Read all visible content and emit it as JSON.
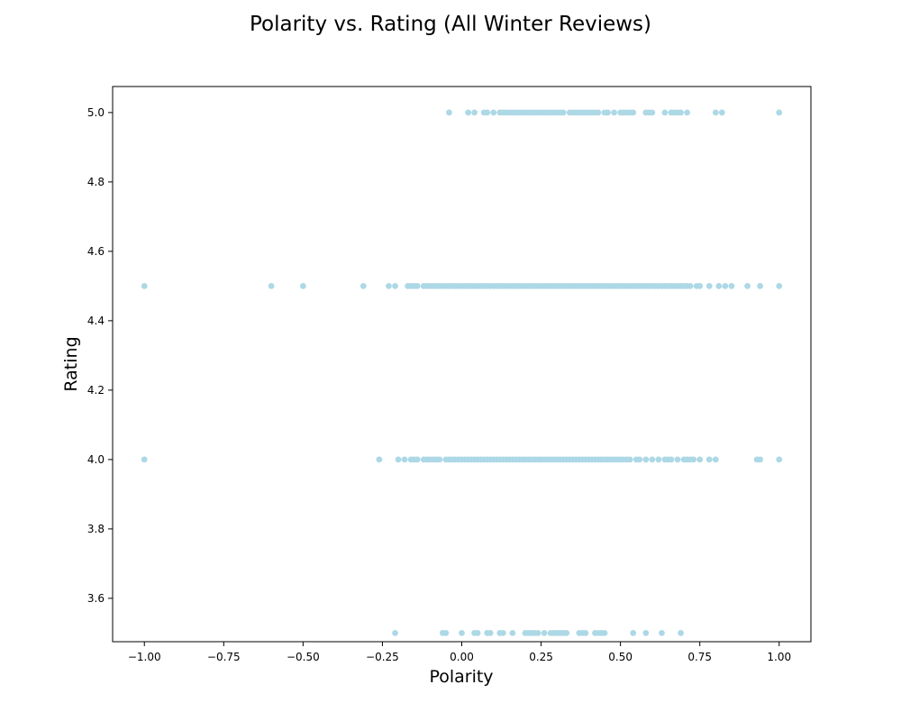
{
  "chart_data": {
    "type": "scatter",
    "title": "Polarity vs. Rating (All Winter Reviews)",
    "xlabel": "Polarity",
    "ylabel": "Rating",
    "xlim": [
      -1.1,
      1.1
    ],
    "ylim": [
      3.475,
      5.075
    ],
    "xticks": [
      -1.0,
      -0.75,
      -0.5,
      -0.25,
      0.0,
      0.25,
      0.5,
      0.75,
      1.0
    ],
    "xtick_labels": [
      "−1.00",
      "−0.75",
      "−0.50",
      "−0.25",
      "0.00",
      "0.25",
      "0.50",
      "0.75",
      "1.00"
    ],
    "yticks": [
      3.6,
      3.8,
      4.0,
      4.2,
      4.4,
      4.6,
      4.8,
      5.0
    ],
    "ytick_labels": [
      "3.6",
      "3.8",
      "4.0",
      "4.2",
      "4.4",
      "4.6",
      "4.8",
      "5.0"
    ],
    "grid": false,
    "marker_color": "#add8e6",
    "series": [
      {
        "y": 5.0,
        "x": [
          -0.04,
          0.02,
          0.04,
          0.07,
          0.08,
          0.1,
          0.12,
          0.13,
          0.14,
          0.15,
          0.16,
          0.17,
          0.18,
          0.19,
          0.2,
          0.21,
          0.22,
          0.23,
          0.24,
          0.25,
          0.26,
          0.27,
          0.28,
          0.29,
          0.3,
          0.31,
          0.32,
          0.34,
          0.35,
          0.36,
          0.37,
          0.38,
          0.39,
          0.4,
          0.41,
          0.42,
          0.43,
          0.45,
          0.46,
          0.48,
          0.5,
          0.51,
          0.52,
          0.53,
          0.54,
          0.58,
          0.59,
          0.6,
          0.64,
          0.66,
          0.67,
          0.68,
          0.69,
          0.71,
          0.8,
          0.82,
          1.0
        ]
      },
      {
        "y": 4.5,
        "x": [
          -1.0,
          -0.6,
          -0.5,
          -0.31,
          -0.23,
          -0.21,
          -0.17,
          -0.16,
          -0.15,
          -0.14,
          -0.12,
          -0.11,
          -0.1,
          -0.09,
          -0.08,
          -0.07,
          -0.06,
          -0.05,
          -0.04,
          -0.03,
          -0.02,
          -0.01,
          0.0,
          0.01,
          0.02,
          0.03,
          0.04,
          0.05,
          0.06,
          0.07,
          0.08,
          0.09,
          0.1,
          0.11,
          0.12,
          0.13,
          0.14,
          0.15,
          0.16,
          0.17,
          0.18,
          0.19,
          0.2,
          0.21,
          0.22,
          0.23,
          0.24,
          0.25,
          0.26,
          0.27,
          0.28,
          0.29,
          0.3,
          0.31,
          0.32,
          0.33,
          0.34,
          0.35,
          0.36,
          0.37,
          0.38,
          0.39,
          0.4,
          0.41,
          0.42,
          0.43,
          0.44,
          0.45,
          0.46,
          0.47,
          0.48,
          0.49,
          0.5,
          0.51,
          0.52,
          0.53,
          0.54,
          0.55,
          0.56,
          0.57,
          0.58,
          0.59,
          0.6,
          0.61,
          0.62,
          0.63,
          0.64,
          0.65,
          0.66,
          0.67,
          0.68,
          0.69,
          0.7,
          0.71,
          0.72,
          0.74,
          0.75,
          0.78,
          0.81,
          0.83,
          0.85,
          0.9,
          0.94,
          1.0
        ]
      },
      {
        "y": 4.0,
        "x": [
          -1.0,
          -0.26,
          -0.2,
          -0.18,
          -0.16,
          -0.15,
          -0.14,
          -0.12,
          -0.11,
          -0.1,
          -0.09,
          -0.08,
          -0.07,
          -0.05,
          -0.04,
          -0.03,
          -0.02,
          -0.01,
          0.0,
          0.01,
          0.02,
          0.03,
          0.04,
          0.05,
          0.06,
          0.07,
          0.08,
          0.09,
          0.1,
          0.11,
          0.12,
          0.13,
          0.14,
          0.15,
          0.16,
          0.17,
          0.18,
          0.19,
          0.2,
          0.21,
          0.22,
          0.23,
          0.24,
          0.25,
          0.26,
          0.27,
          0.28,
          0.29,
          0.3,
          0.31,
          0.32,
          0.33,
          0.34,
          0.35,
          0.36,
          0.37,
          0.38,
          0.39,
          0.4,
          0.41,
          0.42,
          0.43,
          0.44,
          0.45,
          0.46,
          0.47,
          0.48,
          0.49,
          0.5,
          0.51,
          0.52,
          0.53,
          0.55,
          0.56,
          0.58,
          0.6,
          0.62,
          0.64,
          0.65,
          0.66,
          0.68,
          0.7,
          0.71,
          0.72,
          0.73,
          0.75,
          0.78,
          0.8,
          0.93,
          0.94,
          1.0
        ]
      },
      {
        "y": 3.5,
        "x": [
          -0.21,
          -0.06,
          -0.05,
          0.0,
          0.04,
          0.05,
          0.08,
          0.09,
          0.12,
          0.13,
          0.16,
          0.2,
          0.21,
          0.22,
          0.23,
          0.24,
          0.26,
          0.28,
          0.29,
          0.3,
          0.31,
          0.32,
          0.33,
          0.37,
          0.38,
          0.39,
          0.42,
          0.43,
          0.44,
          0.45,
          0.54,
          0.58,
          0.63,
          0.69
        ]
      }
    ]
  }
}
